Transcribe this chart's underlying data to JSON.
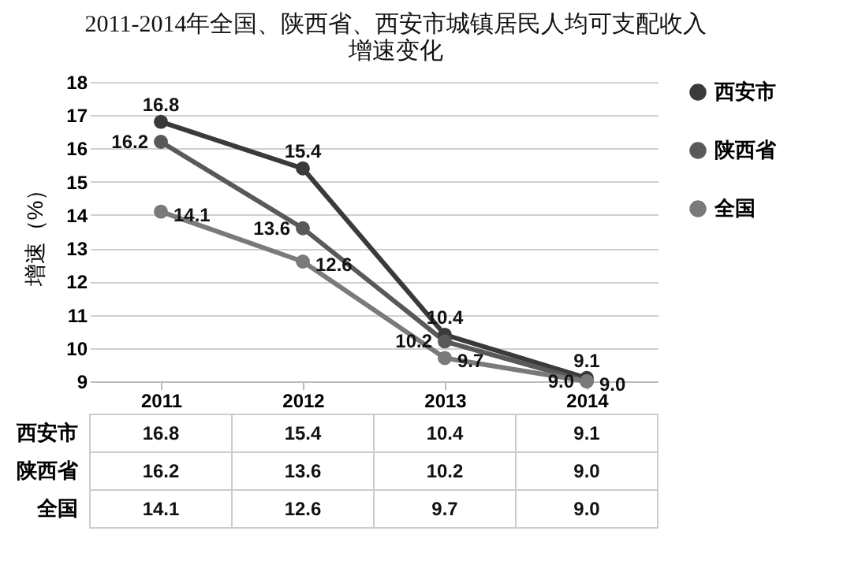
{
  "chart_data": {
    "type": "line",
    "title": "2011-2014年全国、陕西省、西安市城镇居民人均可支配收入",
    "subtitle": "增速变化",
    "ylabel": "增速（%）",
    "categories": [
      "2011",
      "2012",
      "2013",
      "2014"
    ],
    "series": [
      {
        "name": "西安市",
        "color": "#3a3a3a",
        "values": [
          16.8,
          15.4,
          10.4,
          9.1
        ],
        "value_labels": [
          "16.8",
          "15.4",
          "10.4",
          "9.1"
        ]
      },
      {
        "name": "陕西省",
        "color": "#595959",
        "values": [
          16.2,
          13.6,
          10.2,
          9.0
        ],
        "value_labels": [
          "16.2",
          "13.6",
          "10.2",
          "9.0"
        ]
      },
      {
        "name": "全国",
        "color": "#7a7a7a",
        "values": [
          14.1,
          12.6,
          9.7,
          9.0
        ],
        "value_labels": [
          "14.1",
          "12.6",
          "9.7",
          "9.0"
        ]
      }
    ],
    "ylim": [
      9,
      18
    ],
    "yticks": [
      9,
      10,
      11,
      12,
      13,
      14,
      15,
      16,
      17,
      18
    ],
    "grid": "y",
    "legend": "right",
    "marker": "circle",
    "line_style": "solid"
  }
}
